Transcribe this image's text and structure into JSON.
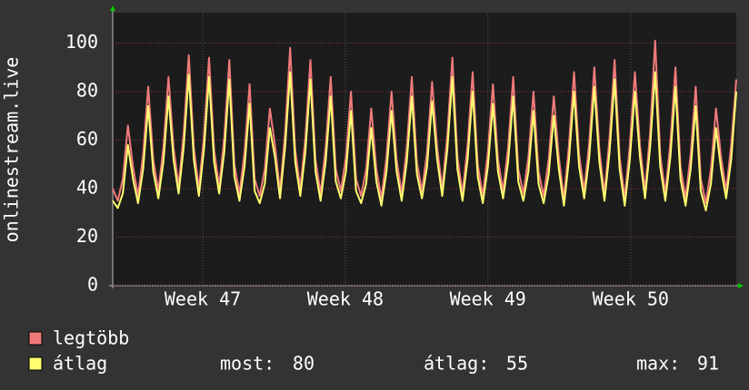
{
  "chart_data": {
    "type": "line",
    "ylabel": "onlinestream.live",
    "x": [
      0,
      0.25,
      0.5,
      0.75,
      1,
      1.25,
      1.5,
      1.75,
      2,
      2.25,
      2.5,
      2.75,
      3,
      3.25,
      3.5,
      3.75,
      4,
      4.25,
      4.5,
      4.75,
      5,
      5.25,
      5.5,
      5.75,
      6,
      6.25,
      6.5,
      6.75,
      7,
      7.25,
      7.5,
      7.75,
      8,
      8.25,
      8.5,
      8.75,
      9,
      9.25,
      9.5,
      9.75,
      10,
      10.25,
      10.5,
      10.75,
      11,
      11.25,
      11.5,
      11.75,
      12,
      12.25,
      12.5,
      12.75,
      13,
      13.25,
      13.5,
      13.75,
      14,
      14.25,
      14.5,
      14.75,
      15,
      15.25,
      15.5,
      15.75,
      16,
      16.25,
      16.5,
      16.75,
      17,
      17.25,
      17.5,
      17.75,
      18,
      18.25,
      18.5,
      18.75,
      19,
      19.25,
      19.5,
      19.75,
      20,
      20.25,
      20.5,
      20.75,
      21,
      21.25,
      21.5,
      21.75,
      22,
      22.25,
      22.5,
      22.75,
      23,
      23.25,
      23.5,
      23.75,
      24,
      24.25,
      24.5,
      24.75,
      25,
      25.25,
      25.5,
      25.75,
      26,
      26.25,
      26.5,
      26.75,
      27,
      27.25,
      27.5,
      27.75,
      28,
      28.25,
      28.5,
      28.75,
      29,
      29.25,
      29.5,
      29.75,
      30,
      30.25,
      30.5,
      30.75
    ],
    "series": [
      {
        "name": "legtöbb",
        "color": "#f07a7a",
        "values": [
          40,
          35,
          44,
          66,
          49,
          37,
          54,
          82,
          52,
          39,
          57,
          86,
          57,
          41,
          63,
          95,
          57,
          40,
          62,
          94,
          56,
          41,
          61,
          93,
          50,
          38,
          55,
          83,
          44,
          37,
          48,
          73,
          58,
          39,
          63,
          98,
          56,
          40,
          61,
          93,
          52,
          38,
          57,
          86,
          48,
          39,
          53,
          80,
          44,
          37,
          48,
          73,
          48,
          36,
          53,
          80,
          52,
          38,
          57,
          86,
          51,
          39,
          55,
          84,
          57,
          40,
          62,
          94,
          53,
          38,
          58,
          88,
          50,
          37,
          55,
          83,
          52,
          39,
          57,
          86,
          48,
          38,
          53,
          80,
          47,
          37,
          52,
          78,
          53,
          36,
          58,
          88,
          54,
          39,
          59,
          90,
          56,
          38,
          61,
          93,
          53,
          36,
          58,
          88,
          58,
          39,
          63,
          101,
          54,
          38,
          59,
          90,
          49,
          36,
          54,
          82,
          44,
          34,
          48,
          73,
          53,
          39,
          58,
          85
        ]
      },
      {
        "name": "átlag",
        "color": "#ffff70",
        "values": [
          35,
          32,
          38,
          58,
          44,
          34,
          48,
          74,
          47,
          36,
          51,
          78,
          52,
          38,
          57,
          87,
          52,
          37,
          56,
          86,
          51,
          38,
          55,
          85,
          45,
          35,
          49,
          75,
          39,
          34,
          42,
          65,
          53,
          36,
          57,
          88,
          51,
          37,
          55,
          85,
          47,
          35,
          51,
          78,
          43,
          36,
          47,
          72,
          39,
          34,
          42,
          65,
          43,
          33,
          47,
          72,
          47,
          35,
          51,
          78,
          46,
          36,
          49,
          76,
          52,
          37,
          56,
          86,
          48,
          35,
          52,
          80,
          45,
          34,
          49,
          75,
          47,
          36,
          51,
          78,
          43,
          35,
          47,
          72,
          42,
          34,
          46,
          70,
          48,
          33,
          52,
          80,
          49,
          36,
          53,
          82,
          51,
          35,
          55,
          85,
          48,
          33,
          52,
          80,
          53,
          36,
          57,
          88,
          49,
          35,
          53,
          82,
          44,
          33,
          48,
          74,
          39,
          31,
          42,
          65,
          48,
          36,
          52,
          80
        ]
      }
    ],
    "stats": [
      {
        "label": "most:",
        "value": 80
      },
      {
        "label": "átlag:",
        "value": 55
      },
      {
        "label": "max:",
        "value": 91
      }
    ],
    "xlim": [
      0,
      30.75
    ],
    "xticks": [
      {
        "value": 4.44,
        "label": "Week 47"
      },
      {
        "value": 11.47,
        "label": "Week 48"
      },
      {
        "value": 18.5,
        "label": "Week 49"
      },
      {
        "value": 25.54,
        "label": "Week 50"
      }
    ],
    "ylim": [
      0,
      112.5
    ],
    "yticks": [
      0,
      20,
      40,
      60,
      80,
      100
    ],
    "grid": true
  }
}
